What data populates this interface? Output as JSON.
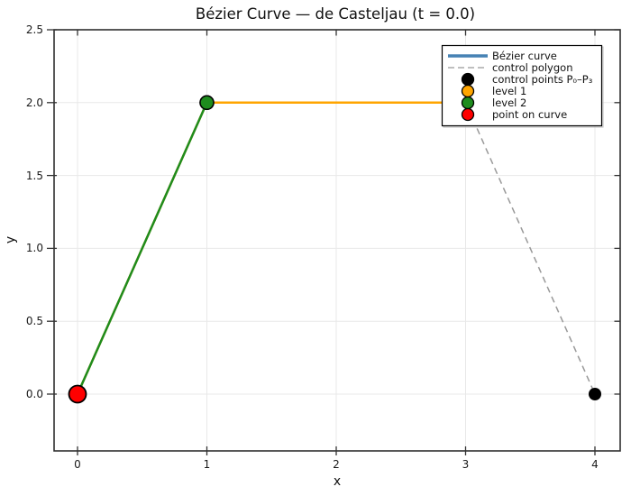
{
  "chart_data": {
    "type": "line",
    "title": "Bézier Curve — de Casteljau  (t = 0.0)",
    "xlabel": "x",
    "ylabel": "y",
    "t_value": 0.0,
    "xlim": [
      -0.18,
      4.2
    ],
    "ylim": [
      -0.39,
      2.5
    ],
    "grid": true,
    "legend_position": "top-right",
    "xticks": [
      0,
      1,
      2,
      3,
      4
    ],
    "yticks": [
      0,
      0.5,
      1,
      1.5,
      2,
      2.5
    ],
    "xtick_labels": [
      "0",
      "1",
      "2",
      "3",
      "4"
    ],
    "ytick_labels": [
      "0.0",
      "0.5",
      "1.0",
      "1.5",
      "2.0",
      "2.5"
    ],
    "control_points": [
      [
        0,
        0
      ],
      [
        1,
        2
      ],
      [
        3,
        2
      ],
      [
        4,
        0
      ]
    ],
    "series": [
      {
        "id": "control-polygon",
        "name": "control polygon",
        "color": "#999999",
        "line_width": 1.5,
        "dash": "7 5",
        "marker_size": 0,
        "points": [
          [
            0,
            0
          ],
          [
            1,
            2
          ],
          [
            3,
            2
          ],
          [
            4,
            0
          ]
        ]
      },
      {
        "id": "control-points",
        "name": "control points P₀–P₃",
        "color": "#000000",
        "line_width": 0,
        "marker_size": 7,
        "points": [
          [
            0,
            0
          ],
          [
            1,
            2
          ],
          [
            3,
            2
          ],
          [
            4,
            0
          ]
        ]
      },
      {
        "id": "level-1",
        "name": "level 1",
        "color": "#FFA500",
        "line_width": 2.5,
        "marker_size": 7.5,
        "marker_edge": "#000000",
        "marker_edge_width": 1.5,
        "points": [
          [
            0,
            0
          ],
          [
            1,
            2
          ],
          [
            3,
            2
          ]
        ]
      },
      {
        "id": "level-2",
        "name": "level 2",
        "color": "#1E8C1E",
        "line_width": 2.5,
        "marker_size": 7.5,
        "marker_edge": "#000000",
        "marker_edge_width": 1.5,
        "points": [
          [
            0,
            0
          ],
          [
            1,
            2
          ]
        ]
      },
      {
        "id": "bezier-curve",
        "name": "Bézier curve",
        "color": "#4682B4",
        "line_width": 3.5,
        "marker_size": 0,
        "points": [
          [
            0,
            0
          ]
        ]
      },
      {
        "id": "point-on-curve",
        "name": "point on curve",
        "color": "#FF0000",
        "line_width": 0,
        "marker_size": 9.5,
        "marker_edge": "#000000",
        "marker_edge_width": 1.8,
        "points": [
          [
            0,
            0
          ]
        ]
      }
    ],
    "legend": {
      "items": [
        {
          "label": "Bézier curve",
          "color": "#4682B4",
          "sample": "line"
        },
        {
          "label": "control polygon",
          "color": "#AAAAAA",
          "sample": "dashed-line"
        },
        {
          "label": "control points P₀–P₃",
          "color": "#000000",
          "sample": "circle"
        },
        {
          "label": "level 1",
          "color": "#FFA500",
          "sample": "circle"
        },
        {
          "label": "level 2",
          "color": "#1E8C1E",
          "sample": "circle"
        },
        {
          "label": "point on curve",
          "color": "#FF0000",
          "sample": "circle"
        }
      ]
    }
  }
}
